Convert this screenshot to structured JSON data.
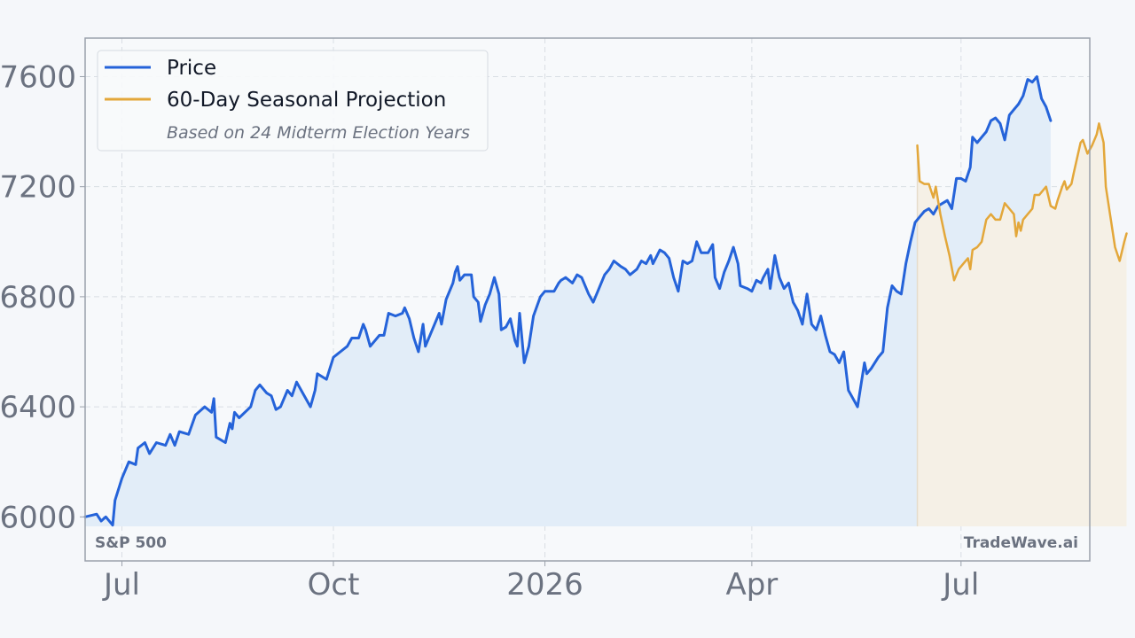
{
  "chart_data": {
    "type": "line",
    "grid": true,
    "legend_position": "top-left",
    "ylim": [
      5840,
      7740
    ],
    "xlim": [
      "2025-06-15",
      "2026-08-26"
    ],
    "y_ticks": [
      6000,
      6400,
      6800,
      7200,
      7600
    ],
    "y_tick_labels": [
      "6000",
      "6400",
      "6800",
      "7200",
      "7600"
    ],
    "x_ticks": [
      "2025-07-01",
      "2025-10-01",
      "2026-01-01",
      "2026-04-01",
      "2026-07-01"
    ],
    "x_tick_labels": [
      "Jul",
      "Oct",
      "2026",
      "Apr",
      "Jul"
    ],
    "legend_note": "Based on 24 Midterm Election Years",
    "corner_left": "S&P 500",
    "corner_right": "TradeWave.ai",
    "colors": {
      "price": "#2563d9",
      "projection": "#e3a73a",
      "price_fill": "#e2edf8",
      "projection_fill": "#f5f0e6"
    },
    "series": [
      {
        "name": "Price",
        "points": [
          [
            "2025-06-15",
            6000
          ],
          [
            "2025-06-20",
            6010
          ],
          [
            "2025-06-22",
            5985
          ],
          [
            "2025-06-24",
            6000
          ],
          [
            "2025-06-27",
            5970
          ],
          [
            "2025-06-28",
            6060
          ],
          [
            "2025-07-01",
            6140
          ],
          [
            "2025-07-04",
            6200
          ],
          [
            "2025-07-07",
            6190
          ],
          [
            "2025-07-08",
            6250
          ],
          [
            "2025-07-11",
            6270
          ],
          [
            "2025-07-13",
            6230
          ],
          [
            "2025-07-16",
            6270
          ],
          [
            "2025-07-20",
            6260
          ],
          [
            "2025-07-22",
            6300
          ],
          [
            "2025-07-24",
            6260
          ],
          [
            "2025-07-26",
            6310
          ],
          [
            "2025-07-30",
            6300
          ],
          [
            "2025-08-02",
            6370
          ],
          [
            "2025-08-06",
            6400
          ],
          [
            "2025-08-09",
            6380
          ],
          [
            "2025-08-10",
            6430
          ],
          [
            "2025-08-11",
            6290
          ],
          [
            "2025-08-15",
            6270
          ],
          [
            "2025-08-17",
            6340
          ],
          [
            "2025-08-18",
            6320
          ],
          [
            "2025-08-19",
            6380
          ],
          [
            "2025-08-21",
            6360
          ],
          [
            "2025-08-26",
            6400
          ],
          [
            "2025-08-28",
            6460
          ],
          [
            "2025-08-30",
            6480
          ],
          [
            "2025-09-02",
            6450
          ],
          [
            "2025-09-04",
            6440
          ],
          [
            "2025-09-06",
            6390
          ],
          [
            "2025-09-08",
            6400
          ],
          [
            "2025-09-11",
            6460
          ],
          [
            "2025-09-13",
            6440
          ],
          [
            "2025-09-15",
            6490
          ],
          [
            "2025-09-17",
            6460
          ],
          [
            "2025-09-21",
            6400
          ],
          [
            "2025-09-23",
            6460
          ],
          [
            "2025-09-24",
            6520
          ],
          [
            "2025-09-28",
            6500
          ],
          [
            "2025-10-01",
            6580
          ],
          [
            "2025-10-04",
            6600
          ],
          [
            "2025-10-07",
            6620
          ],
          [
            "2025-10-09",
            6650
          ],
          [
            "2025-10-12",
            6650
          ],
          [
            "2025-10-14",
            6700
          ],
          [
            "2025-10-15",
            6680
          ],
          [
            "2025-10-17",
            6620
          ],
          [
            "2025-10-21",
            6660
          ],
          [
            "2025-10-23",
            6660
          ],
          [
            "2025-10-25",
            6740
          ],
          [
            "2025-10-28",
            6730
          ],
          [
            "2025-10-31",
            6740
          ],
          [
            "2025-11-01",
            6760
          ],
          [
            "2025-11-03",
            6720
          ],
          [
            "2025-11-05",
            6650
          ],
          [
            "2025-11-07",
            6600
          ],
          [
            "2025-11-09",
            6700
          ],
          [
            "2025-11-10",
            6620
          ],
          [
            "2025-11-14",
            6700
          ],
          [
            "2025-11-16",
            6740
          ],
          [
            "2025-11-17",
            6700
          ],
          [
            "2025-11-19",
            6790
          ],
          [
            "2025-11-22",
            6850
          ],
          [
            "2025-11-23",
            6890
          ],
          [
            "2025-11-24",
            6910
          ],
          [
            "2025-11-25",
            6860
          ],
          [
            "2025-11-27",
            6880
          ],
          [
            "2025-11-30",
            6880
          ],
          [
            "2025-12-01",
            6800
          ],
          [
            "2025-12-03",
            6780
          ],
          [
            "2025-12-04",
            6710
          ],
          [
            "2025-12-06",
            6770
          ],
          [
            "2025-12-08",
            6810
          ],
          [
            "2025-12-10",
            6870
          ],
          [
            "2025-12-12",
            6810
          ],
          [
            "2025-12-13",
            6680
          ],
          [
            "2025-12-15",
            6690
          ],
          [
            "2025-12-17",
            6720
          ],
          [
            "2025-12-19",
            6640
          ],
          [
            "2025-12-20",
            6620
          ],
          [
            "2025-12-21",
            6740
          ],
          [
            "2025-12-23",
            6560
          ],
          [
            "2025-12-25",
            6620
          ],
          [
            "2025-12-27",
            6730
          ],
          [
            "2025-12-30",
            6800
          ],
          [
            "2026-01-01",
            6820
          ],
          [
            "2026-01-04",
            6820
          ],
          [
            "2026-01-05",
            6820
          ],
          [
            "2026-01-07",
            6850
          ],
          [
            "2026-01-08",
            6860
          ],
          [
            "2026-01-10",
            6870
          ],
          [
            "2026-01-13",
            6850
          ],
          [
            "2026-01-15",
            6880
          ],
          [
            "2026-01-17",
            6870
          ],
          [
            "2026-01-20",
            6810
          ],
          [
            "2026-01-22",
            6780
          ],
          [
            "2026-01-24",
            6820
          ],
          [
            "2026-01-27",
            6880
          ],
          [
            "2026-01-29",
            6900
          ],
          [
            "2026-01-31",
            6930
          ],
          [
            "2026-02-03",
            6910
          ],
          [
            "2026-02-05",
            6900
          ],
          [
            "2026-02-07",
            6880
          ],
          [
            "2026-02-10",
            6900
          ],
          [
            "2026-02-12",
            6930
          ],
          [
            "2026-02-14",
            6920
          ],
          [
            "2026-02-16",
            6950
          ],
          [
            "2026-02-17",
            6920
          ],
          [
            "2026-02-20",
            6970
          ],
          [
            "2026-02-22",
            6960
          ],
          [
            "2026-02-24",
            6940
          ],
          [
            "2026-02-26",
            6870
          ],
          [
            "2026-02-28",
            6820
          ],
          [
            "2026-03-02",
            6930
          ],
          [
            "2026-03-04",
            6920
          ],
          [
            "2026-03-06",
            6930
          ],
          [
            "2026-03-08",
            7000
          ],
          [
            "2026-03-10",
            6960
          ],
          [
            "2026-03-13",
            6960
          ],
          [
            "2026-03-15",
            6990
          ],
          [
            "2026-03-16",
            6870
          ],
          [
            "2026-03-18",
            6830
          ],
          [
            "2026-03-20",
            6890
          ],
          [
            "2026-03-22",
            6930
          ],
          [
            "2026-03-24",
            6980
          ],
          [
            "2026-03-26",
            6920
          ],
          [
            "2026-03-27",
            6840
          ],
          [
            "2026-03-30",
            6830
          ],
          [
            "2026-04-01",
            6820
          ],
          [
            "2026-04-03",
            6860
          ],
          [
            "2026-04-05",
            6850
          ],
          [
            "2026-04-06",
            6870
          ],
          [
            "2026-04-08",
            6900
          ],
          [
            "2026-04-09",
            6830
          ],
          [
            "2026-04-11",
            6950
          ],
          [
            "2026-04-13",
            6870
          ],
          [
            "2026-04-15",
            6830
          ],
          [
            "2026-04-17",
            6850
          ],
          [
            "2026-04-19",
            6780
          ],
          [
            "2026-04-21",
            6750
          ],
          [
            "2026-04-23",
            6700
          ],
          [
            "2026-04-25",
            6810
          ],
          [
            "2026-04-27",
            6700
          ],
          [
            "2026-04-29",
            6680
          ],
          [
            "2026-05-01",
            6730
          ],
          [
            "2026-05-03",
            6660
          ],
          [
            "2026-05-05",
            6600
          ],
          [
            "2026-05-07",
            6590
          ],
          [
            "2026-05-09",
            6560
          ],
          [
            "2026-05-11",
            6600
          ],
          [
            "2026-05-13",
            6460
          ],
          [
            "2026-05-15",
            6430
          ],
          [
            "2026-05-17",
            6400
          ],
          [
            "2026-05-20",
            6560
          ],
          [
            "2026-05-21",
            6520
          ],
          [
            "2026-05-23",
            6540
          ],
          [
            "2026-05-26",
            6580
          ],
          [
            "2026-05-28",
            6600
          ],
          [
            "2026-05-30",
            6760
          ],
          [
            "2026-06-01",
            6840
          ],
          [
            "2026-06-03",
            6820
          ],
          [
            "2026-06-05",
            6810
          ],
          [
            "2026-06-07",
            6920
          ],
          [
            "2026-06-09",
            7000
          ],
          [
            "2026-06-11",
            7070
          ],
          [
            "2026-06-13",
            7090
          ],
          [
            "2026-06-15",
            7110
          ],
          [
            "2026-06-17",
            7120
          ],
          [
            "2026-06-19",
            7100
          ],
          [
            "2026-06-21",
            7130
          ],
          [
            "2026-06-23",
            7140
          ],
          [
            "2026-06-25",
            7150
          ],
          [
            "2026-06-27",
            7120
          ],
          [
            "2026-06-29",
            7230
          ],
          [
            "2026-07-01",
            7230
          ],
          [
            "2026-07-03",
            7220
          ],
          [
            "2026-07-05",
            7270
          ],
          [
            "2026-07-06",
            7380
          ],
          [
            "2026-07-08",
            7360
          ],
          [
            "2026-07-10",
            7380
          ],
          [
            "2026-07-12",
            7400
          ],
          [
            "2026-07-14",
            7440
          ],
          [
            "2026-07-16",
            7450
          ],
          [
            "2026-07-18",
            7430
          ],
          [
            "2026-07-20",
            7370
          ],
          [
            "2026-07-22",
            7460
          ],
          [
            "2026-07-24",
            7480
          ],
          [
            "2026-07-26",
            7500
          ],
          [
            "2026-07-28",
            7530
          ],
          [
            "2026-07-30",
            7590
          ],
          [
            "2026-08-01",
            7580
          ],
          [
            "2026-08-03",
            7600
          ],
          [
            "2026-08-05",
            7520
          ],
          [
            "2026-08-07",
            7490
          ],
          [
            "2026-08-09",
            7440
          ]
        ]
      },
      {
        "name": "60-Day Seasonal Projection",
        "points": [
          [
            "2026-06-12",
            7350
          ],
          [
            "2026-06-13",
            7220
          ],
          [
            "2026-06-15",
            7210
          ],
          [
            "2026-06-17",
            7210
          ],
          [
            "2026-06-19",
            7160
          ],
          [
            "2026-06-20",
            7200
          ],
          [
            "2026-06-22",
            7100
          ],
          [
            "2026-06-24",
            7020
          ],
          [
            "2026-06-26",
            6950
          ],
          [
            "2026-06-28",
            6860
          ],
          [
            "2026-06-30",
            6900
          ],
          [
            "2026-07-02",
            6920
          ],
          [
            "2026-07-04",
            6940
          ],
          [
            "2026-07-05",
            6900
          ],
          [
            "2026-07-06",
            6970
          ],
          [
            "2026-07-08",
            6980
          ],
          [
            "2026-07-10",
            7000
          ],
          [
            "2026-07-12",
            7080
          ],
          [
            "2026-07-14",
            7100
          ],
          [
            "2026-07-16",
            7080
          ],
          [
            "2026-07-18",
            7080
          ],
          [
            "2026-07-20",
            7140
          ],
          [
            "2026-07-22",
            7120
          ],
          [
            "2026-07-24",
            7100
          ],
          [
            "2026-07-25",
            7020
          ],
          [
            "2026-07-26",
            7070
          ],
          [
            "2026-07-27",
            7040
          ],
          [
            "2026-07-28",
            7080
          ],
          [
            "2026-07-30",
            7100
          ],
          [
            "2026-08-01",
            7120
          ],
          [
            "2026-08-02",
            7170
          ],
          [
            "2026-08-04",
            7170
          ],
          [
            "2026-08-06",
            7190
          ],
          [
            "2026-08-07",
            7200
          ],
          [
            "2026-08-09",
            7130
          ],
          [
            "2026-08-11",
            7120
          ],
          [
            "2026-08-12",
            7150
          ],
          [
            "2026-08-14",
            7200
          ],
          [
            "2026-08-15",
            7220
          ],
          [
            "2026-08-16",
            7190
          ],
          [
            "2026-08-18",
            7210
          ],
          [
            "2026-08-19",
            7250
          ],
          [
            "2026-08-22",
            7360
          ],
          [
            "2026-08-23",
            7370
          ],
          [
            "2026-08-25",
            7320
          ],
          [
            "2026-08-27",
            7350
          ],
          [
            "2026-08-29",
            7390
          ],
          [
            "2026-08-30",
            7430
          ],
          [
            "2026-09-01",
            7360
          ],
          [
            "2026-09-02",
            7200
          ],
          [
            "2026-09-04",
            7090
          ],
          [
            "2026-09-06",
            6980
          ],
          [
            "2026-09-08",
            6930
          ],
          [
            "2026-09-10",
            7000
          ],
          [
            "2026-09-11",
            7030
          ]
        ]
      }
    ]
  }
}
